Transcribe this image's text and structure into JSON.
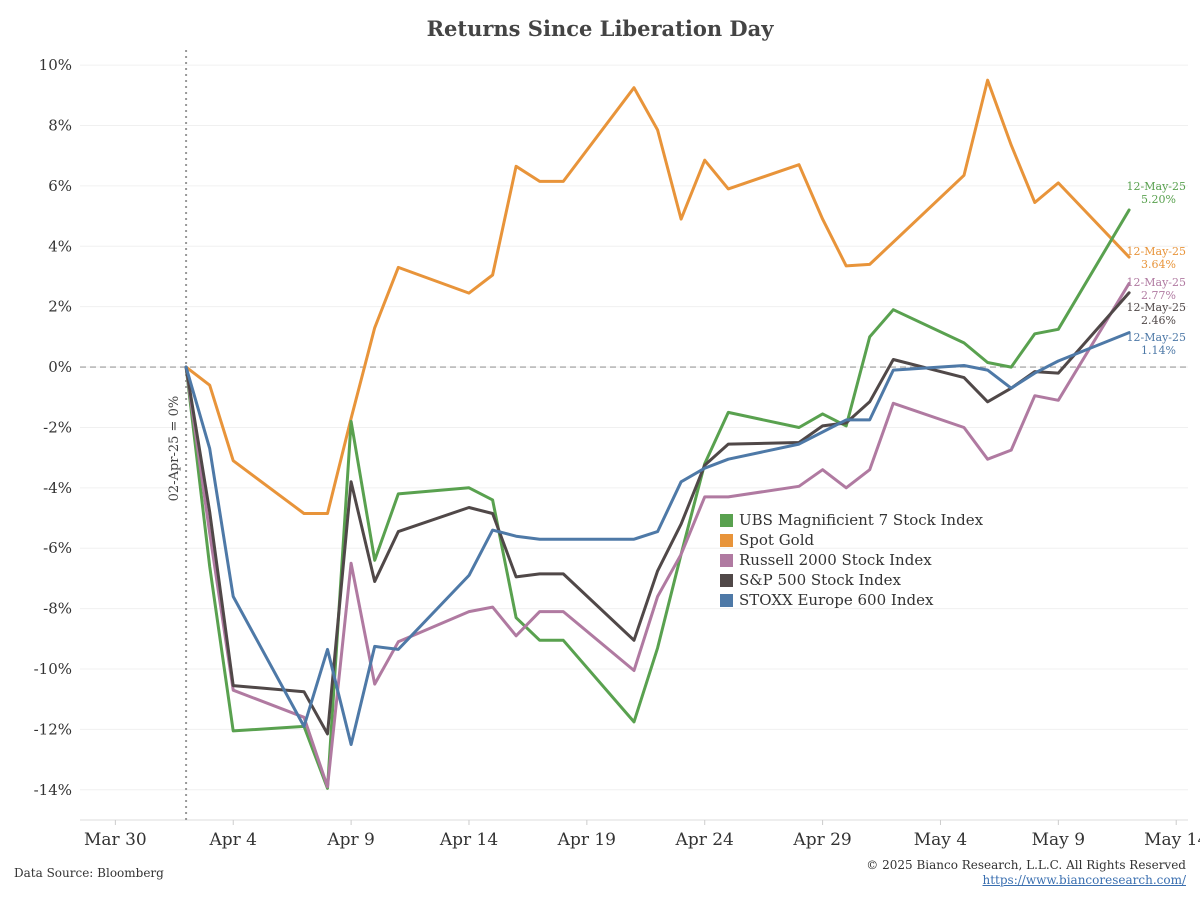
{
  "chart_data": {
    "type": "line",
    "title": "Returns Since Liberation Day",
    "xlabel": "",
    "ylabel": "",
    "ylim": [
      -15,
      10.5
    ],
    "yticks": [
      10,
      8,
      6,
      4,
      2,
      0,
      -2,
      -4,
      -6,
      -8,
      -10,
      -12,
      -14
    ],
    "ytick_labels": [
      "10%",
      "8%",
      "6%",
      "4%",
      "2%",
      "0%",
      "-2%",
      "-4%",
      "-6%",
      "-8%",
      "-10%",
      "-12%",
      "-14%"
    ],
    "xticks": [
      0,
      5,
      10,
      15,
      20,
      25,
      30,
      35,
      40,
      45
    ],
    "xtick_labels": [
      "Mar 30",
      "Apr 4",
      "Apr 9",
      "Apr 14",
      "Apr 19",
      "Apr 24",
      "Apr 29",
      "May 4",
      "May 9",
      "May 14"
    ],
    "xlim": [
      -1.5,
      45.5
    ],
    "reference_line": {
      "x": 3,
      "label": "02-Apr-25 = 0%"
    },
    "zero_line": 0,
    "series": [
      {
        "name": "Spot Gold",
        "color": "#e8943a",
        "x": [
          3,
          4,
          5,
          8,
          9,
          10,
          11,
          12,
          15,
          16,
          17,
          18,
          19,
          22,
          23,
          24,
          25,
          26,
          29,
          30,
          31,
          32,
          36,
          37,
          38,
          39,
          40,
          43
        ],
        "y": [
          0,
          -0.6,
          -3.1,
          -4.85,
          -4.85,
          -1.7,
          1.3,
          3.3,
          2.45,
          3.05,
          6.65,
          6.15,
          6.15,
          9.25,
          7.85,
          4.9,
          6.85,
          5.9,
          6.7,
          4.9,
          3.35,
          3.4,
          6.35,
          9.5,
          7.35,
          5.45,
          6.1,
          3.64
        ],
        "end_label": {
          "date": "12-May-25",
          "value": "3.64%"
        }
      },
      {
        "name": "UBS Magnificient 7 Stock Index",
        "color": "#59a14f",
        "x": [
          3,
          4,
          5,
          8,
          9,
          10,
          11,
          12,
          15,
          16,
          17,
          18,
          19,
          22,
          23,
          24,
          25,
          26,
          29,
          30,
          31,
          32,
          33,
          36,
          37,
          38,
          39,
          40,
          43
        ],
        "y": [
          0,
          -6.6,
          -12.05,
          -11.9,
          -13.95,
          -1.8,
          -6.4,
          -4.2,
          -4.0,
          -4.4,
          -8.3,
          -9.05,
          -9.05,
          -11.75,
          -9.3,
          -6.2,
          -3.2,
          -1.5,
          -2.0,
          -1.55,
          -1.95,
          1.0,
          1.9,
          0.8,
          0.15,
          0.0,
          1.1,
          1.25,
          5.2
        ],
        "end_label": {
          "date": "12-May-25",
          "value": "5.20%"
        }
      },
      {
        "name": "Russell 2000 Stock Index",
        "color": "#b07aa1",
        "x": [
          3,
          4,
          5,
          8,
          9,
          10,
          11,
          12,
          15,
          16,
          17,
          18,
          19,
          22,
          23,
          24,
          25,
          26,
          29,
          30,
          31,
          32,
          33,
          36,
          37,
          38,
          39,
          40,
          43
        ],
        "y": [
          0,
          -5.5,
          -10.7,
          -11.6,
          -13.9,
          -6.5,
          -10.5,
          -9.1,
          -8.1,
          -7.95,
          -8.9,
          -8.1,
          -8.1,
          -10.05,
          -7.6,
          -6.2,
          -4.3,
          -4.3,
          -3.95,
          -3.4,
          -4.0,
          -3.4,
          -1.2,
          -2.0,
          -3.05,
          -2.75,
          -0.95,
          -1.1,
          2.77
        ],
        "end_label": {
          "date": "12-May-25",
          "value": "2.77%"
        }
      },
      {
        "name": "S&P 500 Stock Index",
        "color": "#504848",
        "x": [
          3,
          4,
          5,
          8,
          9,
          10,
          11,
          12,
          15,
          16,
          17,
          18,
          19,
          22,
          23,
          24,
          25,
          26,
          29,
          30,
          31,
          32,
          33,
          36,
          37,
          38,
          39,
          40,
          43
        ],
        "y": [
          0,
          -4.8,
          -10.55,
          -10.75,
          -12.15,
          -3.8,
          -7.1,
          -5.45,
          -4.65,
          -4.85,
          -6.95,
          -6.85,
          -6.85,
          -9.05,
          -6.75,
          -5.2,
          -3.25,
          -2.55,
          -2.5,
          -1.95,
          -1.85,
          -1.15,
          0.25,
          -0.35,
          -1.15,
          -0.7,
          -0.15,
          -0.2,
          2.46
        ],
        "end_label": {
          "date": "12-May-25",
          "value": "2.46%"
        }
      },
      {
        "name": "STOXX Europe 600 Index",
        "color": "#4e79a7",
        "x": [
          3,
          4,
          5,
          8,
          9,
          10,
          11,
          12,
          15,
          16,
          17,
          18,
          19,
          22,
          23,
          24,
          25,
          26,
          29,
          30,
          31,
          32,
          33,
          36,
          37,
          38,
          39,
          40,
          43
        ],
        "y": [
          0,
          -2.7,
          -7.6,
          -11.9,
          -9.35,
          -12.5,
          -9.25,
          -9.35,
          -6.9,
          -5.4,
          -5.6,
          -5.7,
          -5.7,
          -5.7,
          -5.45,
          -3.8,
          -3.35,
          -3.05,
          -2.55,
          -2.15,
          -1.75,
          -1.75,
          -0.1,
          0.05,
          -0.1,
          -0.7,
          -0.2,
          0.2,
          1.14
        ],
        "end_label": {
          "date": "12-May-25",
          "value": "1.14%"
        }
      }
    ],
    "legend_order": [
      "UBS Magnificient 7 Stock Index",
      "Spot Gold",
      "Russell 2000 Stock Index",
      "S&P 500 Stock Index",
      "STOXX Europe 600 Index"
    ],
    "legend_position": "center-right"
  },
  "footer": {
    "source": "Data Source: Bloomberg",
    "copyright": "© 2025 Bianco Research, L.L.C. All Rights Reserved",
    "url": "https://www.biancoresearch.com/"
  }
}
